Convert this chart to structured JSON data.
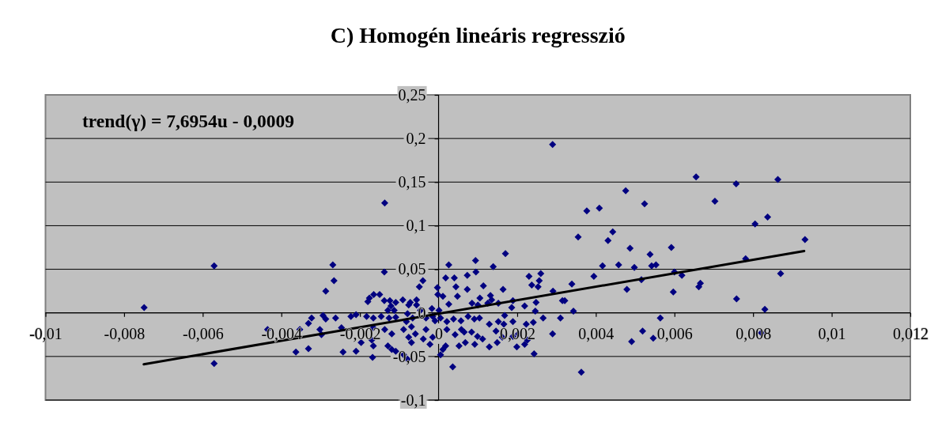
{
  "chart_data": {
    "type": "scatter",
    "title": "C) Homogén lineáris regresszió",
    "annotations": [
      "trend(γ) = 7,6954u - 0,0009"
    ],
    "xlim": [
      -0.01,
      0.012
    ],
    "xticks": [
      {
        "value": -0.01,
        "label": "-0,01"
      },
      {
        "value": -0.008,
        "label": "-0,008"
      },
      {
        "value": -0.006,
        "label": "-0,006"
      },
      {
        "value": -0.004,
        "label": "-0,004"
      },
      {
        "value": -0.002,
        "label": "-0,002"
      },
      0,
      {
        "value": 0.002,
        "label": "0,002"
      },
      {
        "value": 0.004,
        "label": "0,004"
      },
      {
        "value": 0.006,
        "label": "0,006"
      },
      {
        "value": 0.008,
        "label": "0,008"
      },
      {
        "value": 0.01,
        "label": "0,01"
      },
      {
        "value": 0.012,
        "label": "0,012"
      }
    ],
    "ylim": [
      -0.1,
      0.25
    ],
    "yticks": [
      {
        "value": -0.1,
        "label": "-0,1"
      },
      {
        "value": -0.05,
        "label": "-0,05"
      },
      0,
      {
        "value": 0.05,
        "label": "0,05"
      },
      {
        "value": 0.1,
        "label": "0,1"
      },
      {
        "value": 0.15,
        "label": "0,15"
      },
      {
        "value": 0.2,
        "label": "0,2"
      },
      {
        "value": 0.25,
        "label": "0,25"
      }
    ],
    "grid": "y",
    "series": [
      {
        "color": "#000080",
        "marker": "diamond",
        "x": [
          -0.00749,
          -0.00571,
          -0.00571,
          -0.00435,
          -0.00363,
          -0.00353,
          -0.00331,
          -0.00331,
          -0.00323,
          -0.00298,
          0.0017,
          0.00395,
          0.00417,
          0.00458,
          0.00363,
          -0.00137,
          0.0029,
          0.00377,
          0.00409,
          0.00355,
          0.00431,
          0.00443,
          0.00476,
          0.00524,
          0.00655,
          0.00703,
          0.00757,
          0.00863,
          0.00805,
          0.00837,
          0.00932,
          0.00487,
          0.00592,
          0.00538,
          0.00498,
          0.00542,
          0.00553,
          0.006,
          0.00619,
          0.00516,
          0.00479,
          0.00597,
          0.00662,
          0.00666,
          0.00781,
          0.0087,
          0.00758,
          0.0083,
          0.00564,
          0.00519,
          0.00546,
          0.00491,
          0.00821,
          -0.00269,
          0.00094,
          0.00026,
          0.00139,
          -0.00138,
          0.00095,
          0.0026,
          0.0023,
          -0.00266,
          0.00018,
          0.0004,
          0.00073,
          -0.0004,
          0.00256,
          0.00339,
          -0.00287,
          -0.00049,
          0.00044,
          -3e-05,
          0.00237,
          0.00253,
          0.00114,
          0.00073,
          0.00164,
          0.00291,
          -0.00165,
          -0.0015,
          -0.00176,
          -0.0018,
          -2e-05,
          0.00011,
          0.00048,
          0.00105,
          0.00132,
          0.00135,
          -0.00056,
          -0.00072,
          -0.00076,
          -0.00138,
          -0.00124,
          -0.00109,
          -0.00091,
          -0.00121,
          -0.00113,
          -0.00129,
          -0.00056,
          -0.00046,
          -0.00017,
          1e-05,
          0.00026,
          0.00085,
          0.001,
          0.00125,
          0.00152,
          0.00189,
          0.00186,
          0.00219,
          0.00248,
          0.00315,
          0.00321,
          0.00343,
          0.00246,
          0.00168,
          -0.00294,
          -0.00287,
          -0.00262,
          -0.00223,
          -0.0021,
          -0.00183,
          -0.00166,
          -0.00146,
          -0.00126,
          -0.00109,
          -0.00079,
          -0.00082,
          -0.00066,
          -0.00032,
          -0.00015,
          -9e-05,
          5e-05,
          0.00021,
          0.00038,
          0.00057,
          0.00075,
          0.00091,
          0.00104,
          0.00129,
          0.00152,
          0.00166,
          0.00189,
          0.00223,
          0.00241,
          0.00266,
          0.0031,
          -0.00302,
          -0.00247,
          -0.00166,
          -0.00137,
          -0.00119,
          -0.00089,
          -0.00069,
          -0.00059,
          -0.00032,
          0.00021,
          0.00042,
          0.00058,
          0.00065,
          0.00084,
          0.00099,
          0.00112,
          0.00146,
          0.00162,
          0.00189,
          0.00203,
          0.0029,
          -0.00197,
          -0.0017,
          -0.00129,
          -0.00119,
          -0.00076,
          -0.00069,
          -0.00022,
          -0.00039,
          -0.00015,
          0.00018,
          0.00052,
          0.00068,
          0.00092,
          0.00129,
          0.00149,
          0.00199,
          0.00219,
          0.00226,
          -0.00166,
          -0.00243,
          -0.0021,
          -0.00109,
          -0.00168,
          -0.00089,
          -0.00079,
          5e-05,
          0.00011,
          0.00243,
          0.00036
        ],
        "values": [
          0.006,
          0.054,
          -0.058,
          -0.019,
          -0.045,
          -0.019,
          -0.041,
          -0.012,
          -0.006,
          -0.025,
          0.068,
          0.042,
          0.054,
          0.055,
          -0.068,
          0.126,
          0.193,
          0.117,
          0.12,
          0.087,
          0.083,
          0.093,
          0.14,
          0.125,
          0.156,
          0.128,
          0.148,
          0.153,
          0.102,
          0.11,
          0.084,
          0.074,
          0.075,
          0.067,
          0.052,
          0.054,
          0.055,
          0.047,
          0.043,
          0.038,
          0.027,
          0.024,
          0.03,
          0.034,
          0.062,
          0.045,
          0.016,
          0.004,
          -0.006,
          -0.021,
          -0.029,
          -0.033,
          -0.023,
          0.055,
          0.06,
          0.055,
          0.053,
          0.047,
          0.047,
          0.045,
          0.042,
          0.037,
          0.04,
          0.04,
          0.043,
          0.037,
          0.037,
          0.033,
          0.025,
          0.03,
          0.03,
          0.029,
          0.032,
          0.03,
          0.031,
          0.027,
          0.027,
          0.025,
          0.021,
          0.021,
          0.017,
          0.013,
          0.021,
          0.019,
          0.019,
          0.017,
          0.02,
          0.015,
          0.015,
          0.012,
          0.009,
          0.014,
          0.014,
          0.012,
          0.015,
          0.008,
          0.003,
          0.003,
          0.009,
          0.003,
          0.005,
          0.003,
          0.01,
          0.011,
          0.009,
          0.011,
          0.011,
          0.014,
          0.006,
          0.008,
          0.012,
          0.014,
          0.014,
          0.002,
          0.002,
          -0.003,
          -0.003,
          -0.007,
          -0.006,
          -0.004,
          -0.002,
          -0.004,
          -0.006,
          -0.004,
          -0.006,
          -0.005,
          -0.001,
          -0.01,
          -0.006,
          -0.006,
          -0.004,
          -0.009,
          -0.006,
          -0.01,
          -0.007,
          -0.009,
          -0.004,
          -0.007,
          -0.006,
          -0.013,
          -0.01,
          -0.013,
          -0.01,
          -0.013,
          -0.011,
          -0.006,
          -0.006,
          -0.019,
          -0.017,
          -0.017,
          -0.019,
          -0.024,
          -0.019,
          -0.016,
          -0.024,
          -0.019,
          -0.019,
          -0.025,
          -0.019,
          -0.022,
          -0.022,
          -0.027,
          -0.03,
          -0.021,
          -0.028,
          -0.027,
          -0.024,
          -0.024,
          -0.034,
          -0.031,
          -0.038,
          -0.042,
          -0.028,
          -0.034,
          -0.036,
          -0.03,
          -0.028,
          -0.038,
          -0.038,
          -0.034,
          -0.036,
          -0.039,
          -0.034,
          -0.039,
          -0.036,
          -0.031,
          -0.038,
          -0.045,
          -0.044,
          -0.044,
          -0.051,
          -0.048,
          -0.053,
          -0.048,
          -0.042,
          -0.047,
          -0.062
        ]
      },
      {
        "type": "line",
        "color": "#000000",
        "x": [
          -0.0075,
          0.0093
        ],
        "values": [
          -0.059,
          0.071
        ]
      }
    ]
  }
}
